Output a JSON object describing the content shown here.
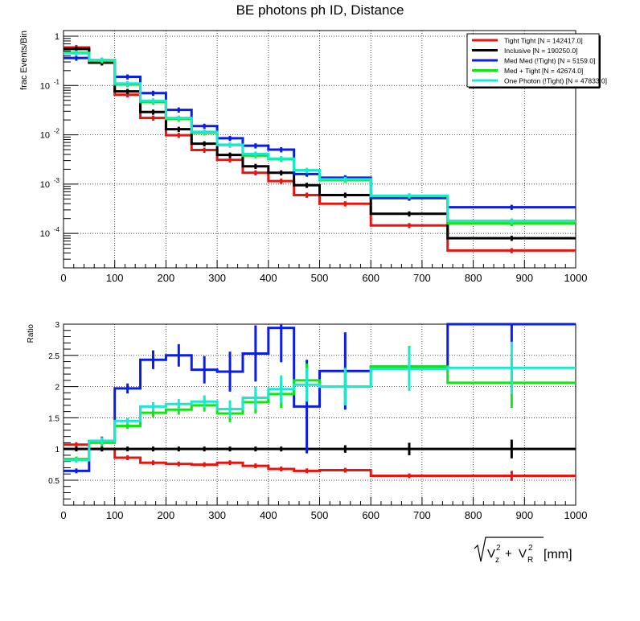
{
  "title": "BE photons ph ID, Distance",
  "xlabel_pre": "√",
  "xlabel_unit": "[mm]",
  "xlabel_terms": [
    "V",
    "z",
    "2",
    "+",
    "V",
    "R",
    "2"
  ],
  "chart_data": [
    {
      "type": "line",
      "ylabel": "frac Events/Bin",
      "yscale": "log",
      "xlim": [
        0,
        1000
      ],
      "ylim": [
        2e-05,
        1.3
      ],
      "grid": true,
      "legend_position": "top-right",
      "x_ticks": [
        "0",
        "100",
        "200",
        "300",
        "400",
        "500",
        "600",
        "700",
        "800",
        "900",
        "1000"
      ],
      "y_ticks": [
        {
          "value": 1,
          "label": "1"
        },
        {
          "value": 0.1,
          "label": "10",
          "exp": "-1"
        },
        {
          "value": 0.01,
          "label": "10",
          "exp": "-2"
        },
        {
          "value": 0.001,
          "label": "10",
          "exp": "-3"
        },
        {
          "value": 0.0001,
          "label": "10",
          "exp": "-4"
        }
      ],
      "bin_edges": [
        0,
        50,
        100,
        150,
        200,
        250,
        300,
        350,
        400,
        450,
        500,
        600,
        750,
        1000
      ],
      "series": [
        {
          "name": "Tight Tight [N = 142417.0]",
          "color": "#e8150f",
          "values": [
            0.59,
            0.29,
            0.065,
            0.022,
            0.0098,
            0.0049,
            0.0031,
            0.0017,
            0.00115,
            0.0006,
            0.0004,
            0.000145,
            4.5e-05
          ]
        },
        {
          "name": "Inclusive [N = 190250.0]",
          "color": "#000000",
          "values": [
            0.55,
            0.29,
            0.076,
            0.029,
            0.013,
            0.0066,
            0.0039,
            0.0023,
            0.0017,
            0.00095,
            0.0006,
            0.00025,
            8e-05
          ]
        },
        {
          "name": "Med Med (!Tight) [N = 5159.0]",
          "color": "#0a1ee6",
          "values": [
            0.36,
            0.33,
            0.15,
            0.07,
            0.032,
            0.015,
            0.0085,
            0.006,
            0.005,
            0.0016,
            0.00135,
            0.00052,
            0.00034
          ]
        },
        {
          "name": "Med + Tight [N = 42674.0]",
          "color": "#0fe80f",
          "values": [
            0.46,
            0.32,
            0.105,
            0.046,
            0.021,
            0.011,
            0.0062,
            0.0038,
            0.0032,
            0.0019,
            0.0012,
            0.00058,
            0.00016
          ]
        },
        {
          "name": "One Photon (!Tight) [N = 47833.0]",
          "color": "#1ae8d0",
          "values": [
            0.45,
            0.33,
            0.11,
            0.049,
            0.022,
            0.0115,
            0.0063,
            0.0041,
            0.0033,
            0.0019,
            0.00125,
            0.00058,
            0.00018
          ]
        }
      ]
    },
    {
      "type": "line",
      "ylabel": "Ratio",
      "yscale": "linear",
      "xlim": [
        0,
        1000
      ],
      "ylim": [
        0.1,
        3
      ],
      "grid": true,
      "x_ticks": [
        "0",
        "100",
        "200",
        "300",
        "400",
        "500",
        "600",
        "700",
        "800",
        "900",
        "1000"
      ],
      "y_ticks": [
        {
          "value": 0.5,
          "label": "0.5"
        },
        {
          "value": 1,
          "label": "1"
        },
        {
          "value": 1.5,
          "label": "1.5"
        },
        {
          "value": 2,
          "label": "2"
        },
        {
          "value": 2.5,
          "label": "2.5"
        },
        {
          "value": 3,
          "label": "3"
        }
      ],
      "bin_edges": [
        0,
        50,
        100,
        150,
        200,
        250,
        300,
        350,
        400,
        450,
        500,
        600,
        750,
        1000
      ],
      "series": [
        {
          "name": "Tight Tight",
          "color": "#e8150f",
          "values": [
            1.07,
            1.0,
            0.86,
            0.78,
            0.76,
            0.75,
            0.78,
            0.73,
            0.68,
            0.65,
            0.66,
            0.57,
            0.57
          ],
          "errors": [
            0,
            0,
            0,
            0,
            0,
            0,
            0,
            0,
            0,
            0,
            0,
            0,
            0.08
          ]
        },
        {
          "name": "Inclusive",
          "color": "#000000",
          "values": [
            1,
            1,
            1,
            1,
            1,
            1,
            1,
            1,
            1,
            1,
            1,
            1,
            1
          ],
          "errors": [
            0,
            0,
            0,
            0,
            0,
            0,
            0,
            0,
            0,
            0,
            0.06,
            0.1,
            0.15
          ]
        },
        {
          "name": "Med Med (!Tight)",
          "color": "#0a1ee6",
          "values": [
            0.65,
            1.13,
            1.97,
            2.43,
            2.5,
            2.27,
            2.24,
            2.53,
            2.94,
            1.68,
            2.25,
            2.32,
            3.0
          ],
          "errors": [
            0,
            0.03,
            0.08,
            0.15,
            0.18,
            0.22,
            0.32,
            0.45,
            0.55,
            0.75,
            0.62,
            0.3,
            0.3
          ]
        },
        {
          "name": "Med + Tight",
          "color": "#0fe80f",
          "values": [
            0.84,
            1.1,
            1.37,
            1.58,
            1.63,
            1.7,
            1.57,
            1.75,
            1.88,
            2.1,
            2.0,
            2.32,
            2.06
          ],
          "errors": [
            0,
            0.02,
            0.05,
            0.07,
            0.08,
            0.1,
            0.14,
            0.18,
            0.22,
            0.27,
            0.3,
            0.33,
            0.4
          ]
        },
        {
          "name": "One Photon (!Tight)",
          "color": "#1ae8d0",
          "values": [
            0.82,
            1.13,
            1.45,
            1.68,
            1.72,
            1.76,
            1.64,
            1.82,
            1.96,
            2.03,
            2.0,
            2.28,
            2.3
          ],
          "errors": [
            0,
            0.02,
            0.05,
            0.07,
            0.08,
            0.1,
            0.14,
            0.18,
            0.22,
            0.27,
            0.3,
            0.35,
            0.42
          ]
        }
      ]
    }
  ]
}
